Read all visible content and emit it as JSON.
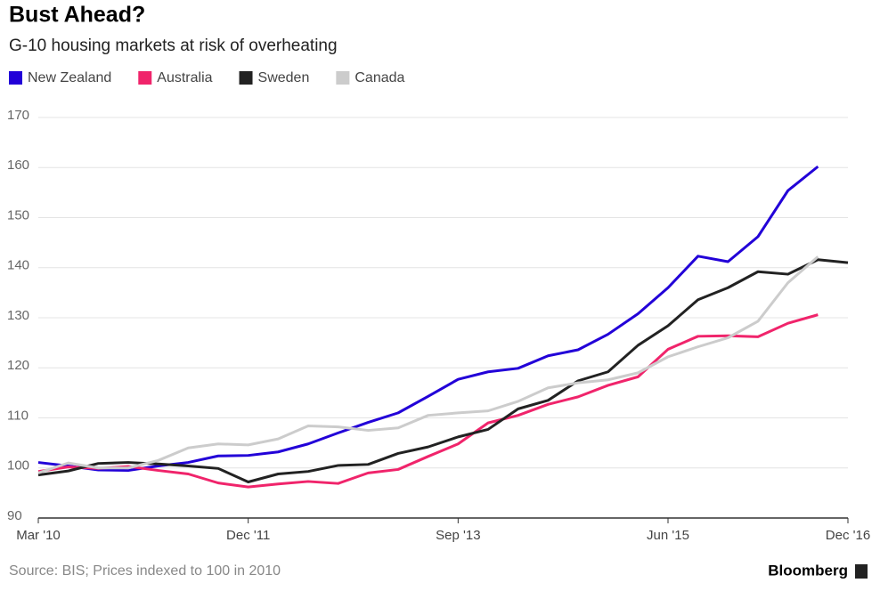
{
  "chart_data": {
    "type": "line",
    "title": "Bust Ahead?",
    "subtitle": "G-10 housing markets at risk of overheating",
    "source": "Source: BIS; Prices indexed to 100 in 2010",
    "brand": "Bloomberg",
    "categories": [
      "Mar '10",
      null,
      null,
      null,
      null,
      null,
      null,
      "Dec '11",
      null,
      null,
      null,
      null,
      null,
      null,
      "Sep '13",
      null,
      null,
      null,
      null,
      null,
      null,
      "Jun '15",
      null,
      null,
      null,
      null,
      null,
      "Dec '16"
    ],
    "series": [
      {
        "name": "New Zealand",
        "color": "#2200d8",
        "values": [
          101.1,
          100.4,
          99.6,
          99.5,
          100.4,
          101.1,
          102.4,
          102.5,
          103.2,
          104.8,
          107,
          109.1,
          111,
          114.3,
          117.7,
          119.2,
          119.9,
          122.4,
          123.6,
          126.7,
          130.8,
          136,
          142.3,
          141.2,
          146.2,
          155.4,
          160.2,
          null
        ]
      },
      {
        "name": "Australia",
        "color": "#f0246b",
        "values": [
          99.3,
          100.2,
          99.9,
          100.3,
          99.5,
          98.8,
          97,
          96.2,
          96.8,
          97.3,
          96.9,
          99,
          99.7,
          102.3,
          104.8,
          109,
          110.5,
          112.7,
          114.2,
          116.5,
          118.2,
          123.7,
          126.3,
          126.4,
          126.2,
          128.9,
          130.6,
          null
        ]
      },
      {
        "name": "Sweden",
        "color": "#222222",
        "values": [
          98.6,
          99.4,
          100.9,
          101.1,
          100.8,
          100.4,
          99.9,
          97.2,
          98.8,
          99.3,
          100.5,
          100.7,
          102.9,
          104.2,
          106.2,
          107.7,
          111.8,
          113.5,
          117.4,
          119.2,
          124.5,
          128.4,
          133.6,
          136,
          139.2,
          138.7,
          141.6,
          141
        ]
      },
      {
        "name": "Canada",
        "color": "#cccccc",
        "values": [
          99,
          101,
          100,
          100,
          101.5,
          104,
          104.8,
          104.6,
          105.8,
          108.4,
          108.2,
          107.5,
          108,
          110.5,
          111,
          111.4,
          113.3,
          116,
          117,
          117.6,
          119,
          122.2,
          124.2,
          126,
          129.3,
          137,
          142.2,
          null
        ]
      }
    ],
    "ylim": [
      90,
      170
    ],
    "yticks": [
      90,
      100,
      110,
      120,
      130,
      140,
      150,
      160,
      170
    ],
    "grid": true
  }
}
